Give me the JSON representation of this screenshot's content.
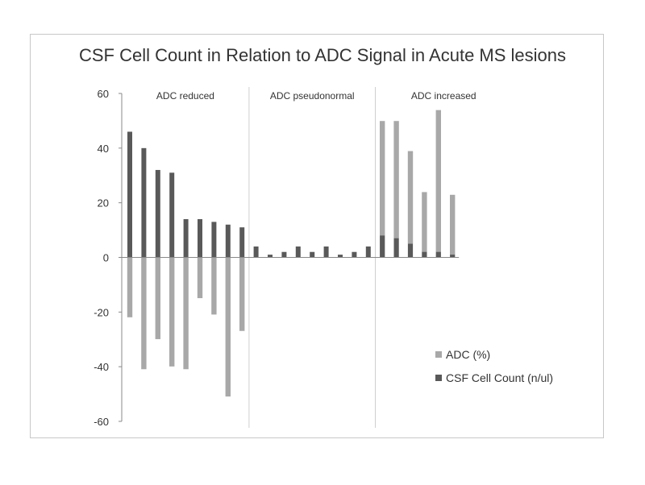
{
  "chart_data": {
    "type": "bar",
    "title": "CSF Cell Count in Relation to ADC Signal in Acute MS lesions",
    "ylim": [
      -60,
      60
    ],
    "yticks": [
      60,
      40,
      20,
      0,
      -20,
      -40,
      -60
    ],
    "groups": [
      {
        "label": "ADC reduced",
        "count": 9
      },
      {
        "label": "ADC pseudonormal",
        "count": 9
      },
      {
        "label": "ADC increased",
        "count": 6
      }
    ],
    "series": [
      {
        "name": "ADC (%)",
        "color": "#a8a8a8",
        "values": [
          -22,
          -41,
          -30,
          -40,
          -41,
          -15,
          -21,
          -51,
          -27,
          0,
          0,
          0,
          0,
          0,
          0,
          0,
          0,
          0,
          50,
          50,
          39,
          24,
          54,
          23
        ]
      },
      {
        "name": "CSF Cell Count (n/ul)",
        "color": "#595959",
        "values": [
          46,
          40,
          32,
          31,
          14,
          14,
          13,
          12,
          11,
          4,
          1,
          2,
          4,
          2,
          4,
          1,
          2,
          4,
          8,
          7,
          5,
          2,
          2,
          1
        ]
      }
    ],
    "grid": false,
    "legend_position": "bottom-right"
  }
}
